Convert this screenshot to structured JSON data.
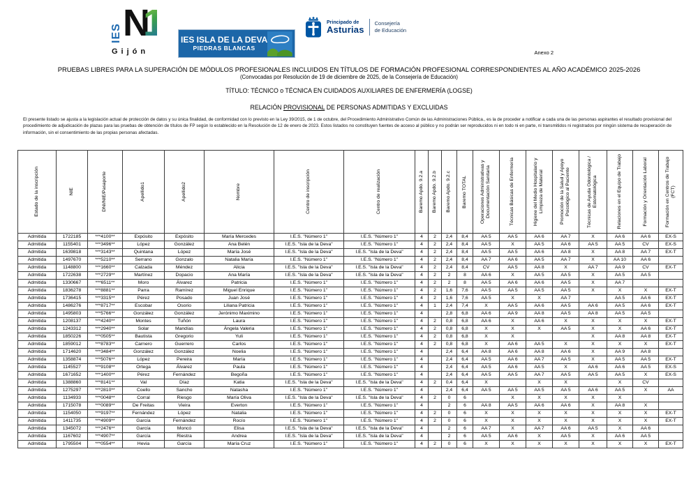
{
  "colors": {
    "deva_blue": "#1c66a8",
    "asturias_blue": "#0056a4",
    "logo_green": "#8dc63f",
    "logo_blue": "#1e6ab0"
  },
  "header": {
    "logo_ies_n1": {
      "ies": "IES",
      "n": "N",
      "one": "1",
      "city": "Gijón"
    },
    "logo_deva": {
      "line1": "IES ISLA DE LA DEVA",
      "line2": "PIEDRAS BLANCAS"
    },
    "logo_asturias": {
      "line1": "Principado de",
      "line2": "Asturias",
      "line3": "Consejería",
      "line4": "de Educación"
    },
    "annex": "Anexo 2"
  },
  "title": {
    "line1": "PRUEBAS LIBRES PARA LA SUPERACIÓN DE MÓDULOS PROFESIONALES INCLUIDOS EN TÍTULOS DE FORMACIÓN PROFESIONAL CORRESPONDIENTES AL AÑO ACADÉMICO 2025-2026",
    "line2": "(Convocadas por Resolución de 19 de diciembre de 2025, de la Consejería de Educación)",
    "line3": "TÍTULO: TÉCNICO o TÉCNICA EN CUIDADOS AUXILIARES DE ENFERMERÍA (LOGSE)",
    "line4_pre": "RELACIÓN ",
    "line4_underlined": "PROVISIONAL",
    "line4_post": " DE PERSONAS ADMITIDAS Y EXCLUIDAS"
  },
  "legal_text": "El presente listado se ajusta a la legislación actual de protección de datos y su única finalidad, de conformidad con lo previsto en la Ley 39/2015, de 1 de octubre, del Procedimiento Administrativo Común de las Administraciones Pública., es la de proceder a notificar a cada una de las personas aspirantes el resultado provisional del procedimiento de adjudicación de plazas para las pruebas de obtención de títulos de FP según lo establecido en la Resolución de 12 de enero de 2023. Estos listados no constituyen fuentes de acceso al público y no podrán ser reproducidos ni en todo ni en parte, ni transmitidos ni registrados por ningún sistema de recuperación de información, sin el consentimiento de las propias personas afectadas.",
  "table": {
    "columns": [
      "Estado de la inscripción",
      "NIE",
      "DNI/NIE/Pasaporte",
      "Apellido1",
      "Apellido2",
      "Nombre",
      "Centro de inscripción",
      "Centro de realización",
      "Baremo Apdo. 9.2.a",
      "Baremo Apdo. 9.2.b",
      "Baremo Apdo. 9.2.c",
      "Baremo TOTAL",
      "Operaciones Administrativas y Documentación Sanitaria",
      "Técnicas Básicas de Enfermería",
      "Higiene del Medio Hospitalario y Limpieza de Material",
      "Promoción de la Salud y Apoyo Psicológico al Paciente",
      "Técnicas de Ayuda Odontológica / Estomatológica",
      "Relaciones en el Equipo de Trabajo",
      "Formación y Orientación Laboral",
      "Formación en Centros de Trabajo (FCT)"
    ],
    "rows": [
      [
        "Admitida",
        "1722185",
        "***4100**",
        "Expósito",
        "Expósito",
        "María Mercedes",
        "I.E.S. \"Número 1\"",
        "I.E.S. \"Número 1\"",
        "4",
        "2",
        "2,4",
        "8,4",
        "AA 5",
        "AA 5",
        "AA 6",
        "AA 7",
        "X",
        "AA 6",
        "AA 6",
        "EX-S"
      ],
      [
        "Admitida",
        "1155401",
        "***3496**",
        "López",
        "González",
        "Ana Belén",
        "I.E.S. \"Isla de la Deva\"",
        "I.E.S. \"Número 1\"",
        "4",
        "2",
        "2,4",
        "8,4",
        "AA 5",
        "X",
        "AA 5",
        "AA 6",
        "AA 5",
        "AA 5",
        "CV",
        "EX-S"
      ],
      [
        "Admitida",
        "1639818",
        "***3143**",
        "Quintana",
        "López",
        "María José",
        "I.E.S. \"Isla de la Deva\"",
        "I.E.S. \"Isla de la Deva\"",
        "4",
        "2",
        "2,4",
        "8,4",
        "AA 5",
        "AA 5",
        "AA 6",
        "AA 8",
        "X",
        "AA 8",
        "AA 7",
        "EX-T"
      ],
      [
        "Admitida",
        "1497670",
        "***5210**",
        "Serrano",
        "Gonzalo",
        "Natalia María",
        "I.E.S. \"Número 1\"",
        "I.E.S. \"Número 1\"",
        "4",
        "2",
        "2,4",
        "8,4",
        "AA 7",
        "AA 6",
        "AA 5",
        "AA 7",
        "X",
        "AA 10",
        "AA 6",
        ""
      ],
      [
        "Admitida",
        "1148800",
        "***1660**",
        "Calzada",
        "Méndez",
        "Alicia",
        "I.E.S. \"Isla de la Deva\"",
        "I.E.S. \"Isla de la Deva\"",
        "4",
        "2",
        "2,4",
        "8,4",
        "CV",
        "AA 5",
        "AA 8",
        "X",
        "AA 7",
        "AA 9",
        "CV",
        "EX-T"
      ],
      [
        "Admitida",
        "1722638",
        "***2729**",
        "Martínez",
        "Dopacio",
        "Ana María",
        "I.E.S. \"Isla de la Deva\"",
        "I.E.S. \"Isla de la Deva\"",
        "4",
        "2",
        "2",
        "8",
        "AA 6",
        "X",
        "AA 5",
        "AA 5",
        "X",
        "AA 5",
        "AA 5",
        ""
      ],
      [
        "Admitida",
        "1330667",
        "***6511**",
        "Moro",
        "Álvarez",
        "Patricia",
        "I.E.S. \"Número 1\"",
        "I.E.S. \"Número 1\"",
        "4",
        "2",
        "2",
        "8",
        "AA 5",
        "AA 6",
        "AA 6",
        "AA 5",
        "X",
        "AA 7",
        "",
        ""
      ],
      [
        "Admitida",
        "1836278",
        "***8881**",
        "Parra",
        "Ramírez",
        "Miguel Enrique",
        "I.E.S. \"Número 1\"",
        "I.E.S. \"Número 1\"",
        "4",
        "2",
        "1,6",
        "7,6",
        "AA 5",
        "AA 5",
        "AA 5",
        "AA 5",
        "X",
        "X",
        "X",
        "EX-T"
      ],
      [
        "Admitida",
        "1736415",
        "***3315**",
        "Pérez",
        "Posado",
        "Juan José",
        "I.E.S. \"Número 1\"",
        "I.E.S. \"Número 1\"",
        "4",
        "2",
        "1,6",
        "7,6",
        "AA 5",
        "X",
        "X",
        "AA 7",
        "",
        "AA 5",
        "AA 6",
        "EX-T"
      ],
      [
        "Admitida",
        "1486276",
        "***8717**",
        "Escobar",
        "Osorio",
        "Liliana Patricia",
        "I.E.S. \"Número 1\"",
        "I.E.S. \"Número 1\"",
        "4",
        "1",
        "2,4",
        "7,4",
        "X",
        "AA 5",
        "AA 6",
        "AA 5",
        "AA 6",
        "AA 5",
        "AA 6",
        "EX-T"
      ],
      [
        "Admitida",
        "1495803",
        "***5766**",
        "González",
        "González",
        "Jerónimo Maximino",
        "I.E.S. \"Número 1\"",
        "I.E.S. \"Número 1\"",
        "4",
        "",
        "2,8",
        "6,8",
        "AA 6",
        "AA 9",
        "AA 8",
        "AA 5",
        "AA 8",
        "AA 5",
        "AA 5",
        ""
      ],
      [
        "Admitida",
        "1208137",
        "***4240**",
        "Montes",
        "Tuñón",
        "Laura",
        "I.E.S. \"Número 1\"",
        "I.E.S. \"Número 1\"",
        "4",
        "2",
        "0,8",
        "6,8",
        "AA 6",
        "X",
        "AA 6",
        "X",
        "X",
        "X",
        "X",
        "EX-T"
      ],
      [
        "Admitida",
        "1243312",
        "***2940**",
        "Solar",
        "Mandías",
        "Ángela Valeria",
        "I.E.S. \"Número 1\"",
        "I.E.S. \"Número 1\"",
        "4",
        "2",
        "0,8",
        "6,8",
        "X",
        "X",
        "X",
        "AA 5",
        "X",
        "X",
        "AA 6",
        "EX-T"
      ],
      [
        "Admitida",
        "1850226",
        "***0505**",
        "Bautista",
        "Gregorio",
        "Yuli",
        "I.E.S. \"Número 1\"",
        "I.E.S. \"Número 1\"",
        "4",
        "2",
        "0,8",
        "6,8",
        "X",
        "X",
        "",
        "",
        "X",
        "AA 8",
        "AA 8",
        "EX-T"
      ],
      [
        "Admitida",
        "1859012",
        "***8783**",
        "Carnero",
        "Guerrero",
        "Carlos",
        "I.E.S. \"Número 1\"",
        "I.E.S. \"Número 1\"",
        "4",
        "2",
        "0,8",
        "6,8",
        "X",
        "AA 6",
        "AA 5",
        "X",
        "X",
        "X",
        "X",
        "EX-T"
      ],
      [
        "Admitida",
        "1714620",
        "***3484**",
        "González",
        "González",
        "Noelia",
        "I.E.S. \"Número 1\"",
        "I.E.S. \"Número 1\"",
        "4",
        "",
        "2,4",
        "6,4",
        "AA 8",
        "AA 6",
        "AA 8",
        "AA 6",
        "X",
        "AA 9",
        "AA 8",
        ""
      ],
      [
        "Admitida",
        "1358874",
        "***5076**",
        "López",
        "Pereira",
        "María",
        "I.E.S. \"Número 1\"",
        "I.E.S. \"Número 1\"",
        "4",
        "",
        "2,4",
        "6,4",
        "AA 5",
        "AA 6",
        "AA 7",
        "AA 5",
        "X",
        "AA 5",
        "AA 5",
        "EX-T"
      ],
      [
        "Admitida",
        "1145527",
        "***9108**",
        "Ortega",
        "Álvarez",
        "Paula",
        "I.E.S. \"Número 1\"",
        "I.E.S. \"Número 1\"",
        "4",
        "",
        "2,4",
        "6,4",
        "AA 5",
        "AA 6",
        "AA 5",
        "X",
        "AA 6",
        "AA 6",
        "AA 5",
        "EX-S"
      ],
      [
        "Admitida",
        "1671652",
        "***1400**",
        "Pérez",
        "Fernández",
        "Begoña",
        "I.E.S. \"Número 1\"",
        "I.E.S. \"Número 1\"",
        "4",
        "",
        "2,4",
        "6,4",
        "AA 5",
        "AA 5",
        "AA 7",
        "AA 5",
        "AA 5",
        "AA 5",
        "X",
        "EX-S"
      ],
      [
        "Admitida",
        "1388860",
        "***8141**",
        "Val",
        "Díaz",
        "Katia",
        "I.E.S. \"Isla de la Deva\"",
        "I.E.S. \"Isla de la Deva\"",
        "4",
        "2",
        "0,4",
        "6,4",
        "X",
        "",
        "X",
        "X",
        "",
        "X",
        "CV",
        ""
      ],
      [
        "Admitida",
        "1275297",
        "***2810**",
        "Coello",
        "Sancho",
        "Natasha",
        "I.E.S. \"Número 1\"",
        "I.E.S. \"Número 1\"",
        "4",
        "",
        "2,4",
        "6,4",
        "AA 5",
        "AA 5",
        "AA 5",
        "AA 5",
        "AA 6",
        "AA 5",
        "X",
        "AA"
      ],
      [
        "Admitida",
        "1134933",
        "***0048**",
        "Corral",
        "Riesgo",
        "María Oliva",
        "I.E.S. \"Isla de la Deva\"",
        "I.E.S. \"Isla de la Deva\"",
        "4",
        "2",
        "0",
        "6",
        "",
        "X",
        "X",
        "X",
        "X",
        "X",
        "",
        ""
      ],
      [
        "Admitida",
        "1715078",
        "***0089**",
        "De Freitas",
        "Vieira",
        "Everton",
        "I.E.S. \"Número 1\"",
        "I.E.S. \"Número 1\"",
        "4",
        "",
        "2",
        "6",
        "AA 8",
        "AA 5",
        "AA 6",
        "AA 6",
        "X",
        "AA 8",
        "X",
        ""
      ],
      [
        "Admitida",
        "1154050",
        "***9197**",
        "Fernández",
        "López",
        "Natalia",
        "I.E.S. \"Número 1\"",
        "I.E.S. \"Número 1\"",
        "4",
        "2",
        "0",
        "6",
        "X",
        "X",
        "X",
        "X",
        "X",
        "X",
        "X",
        "EX-T"
      ],
      [
        "Admitida",
        "1411735",
        "***4909**",
        "García",
        "Fernández",
        "Rocío",
        "I.E.S. \"Número 1\"",
        "I.E.S. \"Número 1\"",
        "4",
        "2",
        "0",
        "6",
        "X",
        "X",
        "X",
        "X",
        "X",
        "X",
        "X",
        "EX-T"
      ],
      [
        "Admitida",
        "1345072",
        "***2476**",
        "García",
        "Moncó",
        "Elisa",
        "I.E.S. \"Isla de la Deva\"",
        "I.E.S. \"Isla de la Deva\"",
        "4",
        "",
        "2",
        "6",
        "AA 7",
        "X",
        "AA 7",
        "AA 6",
        "AA 5",
        "X",
        "AA 6",
        ""
      ],
      [
        "Admitida",
        "1167602",
        "***4907**",
        "García",
        "Riestra",
        "Andrea",
        "I.E.S. \"Isla de la Deva\"",
        "I.E.S. \"Isla de la Deva\"",
        "4",
        "",
        "2",
        "6",
        "AA 5",
        "AA 6",
        "X",
        "AA 5",
        "X",
        "AA 6",
        "AA 5",
        ""
      ],
      [
        "Admitida",
        "1795504",
        "***0554**",
        "Hevia",
        "García",
        "María Cruz",
        "I.E.S. \"Número 1\"",
        "I.E.S. \"Número 1\"",
        "4",
        "2",
        "0",
        "6",
        "X",
        "X",
        "X",
        "X",
        "X",
        "X",
        "X",
        "EX-T"
      ]
    ]
  }
}
